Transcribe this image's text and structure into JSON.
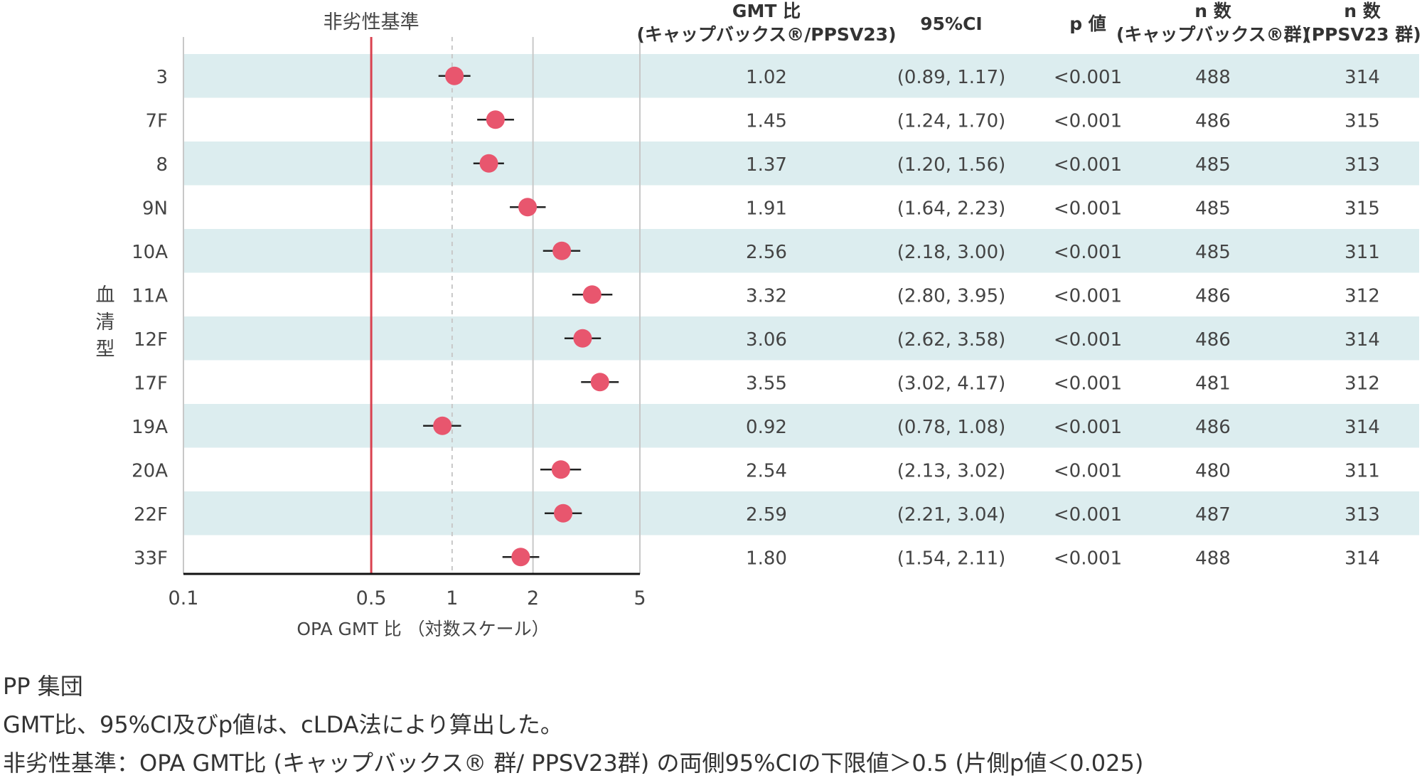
{
  "chart_data": {
    "type": "forest",
    "reference_line": {
      "value": 0.5,
      "label": "非劣性基準",
      "color": "#d9414f"
    },
    "xlabel": "OPA GMT 比 （対数スケール）",
    "ylabel": "血清型",
    "x_scale": "log",
    "x_ticks": [
      "0.1",
      "0.5",
      "1",
      "2",
      "5"
    ],
    "xlim": [
      0.1,
      5
    ],
    "gridlines": [
      1,
      2
    ],
    "marker_color": "#e8566e",
    "band_color": "#dcedef",
    "columns": [
      {
        "title_lines": [
          "GMT 比",
          "(キャップバックス®/PPSV23)"
        ]
      },
      {
        "title_lines": [
          "95%CI"
        ]
      },
      {
        "title_lines": [
          "p 値"
        ]
      },
      {
        "title_lines": [
          "n 数",
          "(キャップバックス®群)"
        ]
      },
      {
        "title_lines": [
          "n 数",
          "(PPSV23 群)"
        ]
      }
    ],
    "rows": [
      {
        "serotype": "3",
        "gmt": 1.02,
        "lo": 0.89,
        "hi": 1.17,
        "gmt_text": "1.02",
        "ci_text": "(0.89, 1.17)",
        "p_text": "<0.001",
        "n1": "488",
        "n2": "314"
      },
      {
        "serotype": "7F",
        "gmt": 1.45,
        "lo": 1.24,
        "hi": 1.7,
        "gmt_text": "1.45",
        "ci_text": "(1.24, 1.70)",
        "p_text": "<0.001",
        "n1": "486",
        "n2": "315"
      },
      {
        "serotype": "8",
        "gmt": 1.37,
        "lo": 1.2,
        "hi": 1.56,
        "gmt_text": "1.37",
        "ci_text": "(1.20, 1.56)",
        "p_text": "<0.001",
        "n1": "485",
        "n2": "313"
      },
      {
        "serotype": "9N",
        "gmt": 1.91,
        "lo": 1.64,
        "hi": 2.23,
        "gmt_text": "1.91",
        "ci_text": "(1.64, 2.23)",
        "p_text": "<0.001",
        "n1": "485",
        "n2": "315"
      },
      {
        "serotype": "10A",
        "gmt": 2.56,
        "lo": 2.18,
        "hi": 3.0,
        "gmt_text": "2.56",
        "ci_text": "(2.18, 3.00)",
        "p_text": "<0.001",
        "n1": "485",
        "n2": "311"
      },
      {
        "serotype": "11A",
        "gmt": 3.32,
        "lo": 2.8,
        "hi": 3.95,
        "gmt_text": "3.32",
        "ci_text": "(2.80, 3.95)",
        "p_text": "<0.001",
        "n1": "486",
        "n2": "312"
      },
      {
        "serotype": "12F",
        "gmt": 3.06,
        "lo": 2.62,
        "hi": 3.58,
        "gmt_text": "3.06",
        "ci_text": "(2.62, 3.58)",
        "p_text": "<0.001",
        "n1": "486",
        "n2": "314"
      },
      {
        "serotype": "17F",
        "gmt": 3.55,
        "lo": 3.02,
        "hi": 4.17,
        "gmt_text": "3.55",
        "ci_text": "(3.02, 4.17)",
        "p_text": "<0.001",
        "n1": "481",
        "n2": "312"
      },
      {
        "serotype": "19A",
        "gmt": 0.92,
        "lo": 0.78,
        "hi": 1.08,
        "gmt_text": "0.92",
        "ci_text": "(0.78, 1.08)",
        "p_text": "<0.001",
        "n1": "486",
        "n2": "314"
      },
      {
        "serotype": "20A",
        "gmt": 2.54,
        "lo": 2.13,
        "hi": 3.02,
        "gmt_text": "2.54",
        "ci_text": "(2.13, 3.02)",
        "p_text": "<0.001",
        "n1": "480",
        "n2": "311"
      },
      {
        "serotype": "22F",
        "gmt": 2.59,
        "lo": 2.21,
        "hi": 3.04,
        "gmt_text": "2.59",
        "ci_text": "(2.21, 3.04)",
        "p_text": "<0.001",
        "n1": "487",
        "n2": "313"
      },
      {
        "serotype": "33F",
        "gmt": 1.8,
        "lo": 1.54,
        "hi": 2.11,
        "gmt_text": "1.80",
        "ci_text": "(1.54, 2.11)",
        "p_text": "<0.001",
        "n1": "488",
        "n2": "314"
      }
    ]
  },
  "footnotes": {
    "population": "PP 集団",
    "method": "GMT比、95%CI及びp値は、cLDA法により算出した。",
    "criterion": "非劣性基準：OPA GMT比 (キャップバックス® 群/ PPSV23群) の両側95%CIの下限値＞0.5 (片側p値＜0.025)"
  }
}
